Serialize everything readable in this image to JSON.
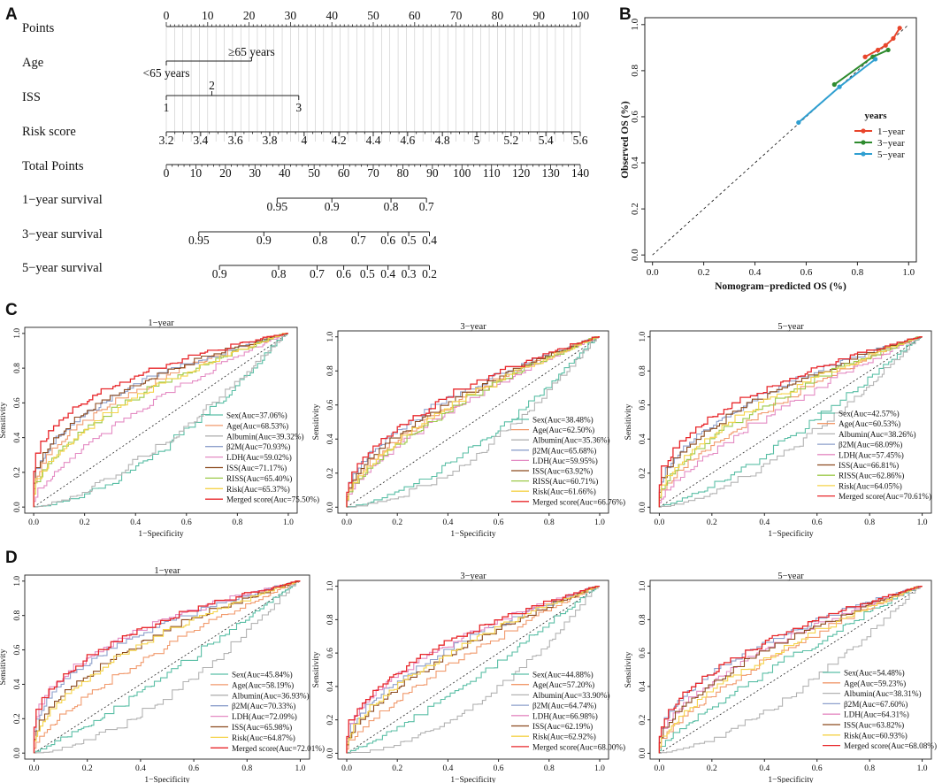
{
  "colors": {
    "Sex": "#5bbfa6",
    "Age": "#f19a6d",
    "Albumin": "#b3b3b3",
    "B2M": "#8ea0cc",
    "LDH": "#e48bc3",
    "ISS": "#8c4a1f",
    "RISS": "#9dc94a",
    "Risk": "#f5d34a",
    "Merged": "#e8282c",
    "y1": "#e8452b",
    "y3": "#2e8b2e",
    "y5": "#2f9fd1"
  },
  "panel_letters": [
    "A",
    "B",
    "C",
    "D"
  ],
  "chart_data": [
    {
      "id": "A",
      "type": "nomogram",
      "rows": [
        {
          "label": "Points",
          "scale": {
            "min": 0,
            "max": 100,
            "ticks": [
              "0",
              "10",
              "20",
              "30",
              "40",
              "50",
              "60",
              "70",
              "80",
              "90",
              "100"
            ],
            "tick_values": [
              0,
              10,
              20,
              30,
              40,
              50,
              60,
              70,
              80,
              90,
              100
            ]
          }
        },
        {
          "label": "Age",
          "categories": [
            {
              "name": "<65 years",
              "points": 0
            },
            {
              "name": "≥65 years",
              "points": 20.6
            }
          ]
        },
        {
          "label": "ISS",
          "categories": [
            {
              "name": "1",
              "points": 0
            },
            {
              "name": "2",
              "points": 11
            },
            {
              "name": "3",
              "points": 32
            }
          ]
        },
        {
          "label": "Risk score",
          "scale": {
            "ticks": [
              "3.2",
              "3.4",
              "3.6",
              "3.8",
              "4",
              "4.2",
              "4.4",
              "4.6",
              "4.8",
              "5",
              "5.2",
              "5.4",
              "5.6"
            ],
            "tick_points": [
              0,
              8.3,
              16.7,
              25,
              33.3,
              41.7,
              50,
              58.3,
              66.7,
              75,
              83.3,
              91.7,
              100
            ]
          }
        },
        {
          "label": "Total Points",
          "scale": {
            "min": 0,
            "max": 140,
            "ticks": [
              "0",
              "10",
              "20",
              "30",
              "40",
              "50",
              "60",
              "70",
              "80",
              "90",
              "100",
              "110",
              "120",
              "130",
              "140"
            ]
          }
        },
        {
          "label": "1−year survival",
          "ticks": [
            "0.95",
            "0.9",
            "0.8",
            "0.7"
          ],
          "total_points": [
            37.5,
            56,
            76,
            88
          ]
        },
        {
          "label": "3−year survival",
          "ticks": [
            "0.95",
            "0.9",
            "0.8",
            "0.7",
            "0.6",
            "0.5",
            "0.4"
          ],
          "total_points": [
            11,
            33,
            52,
            65,
            75,
            82,
            89
          ]
        },
        {
          "label": "5−year survival",
          "ticks": [
            "0.9",
            "0.8",
            "0.7",
            "0.6",
            "0.5",
            "0.4",
            "0.3",
            "0.2"
          ],
          "total_points": [
            18,
            38,
            51,
            60,
            68,
            75,
            82,
            89
          ]
        }
      ]
    },
    {
      "id": "B",
      "type": "line",
      "xlabel": "Nomogram−predicted OS (%)",
      "ylabel": "Observed OS (%)",
      "xlim": [
        -0.03,
        1.03
      ],
      "ylim": [
        -0.03,
        1.03
      ],
      "ticks": [
        "0.0",
        "0.2",
        "0.4",
        "0.6",
        "0.8",
        "1.0"
      ],
      "legend_title": "years",
      "legend_position": "right",
      "series": [
        {
          "name": "1−year",
          "color_key": "y1",
          "x": [
            0.83,
            0.88,
            0.91,
            0.94,
            0.965
          ],
          "y": [
            0.86,
            0.89,
            0.91,
            0.94,
            0.985
          ]
        },
        {
          "name": "3−year",
          "color_key": "y3",
          "x": [
            0.71,
            0.86,
            0.92
          ],
          "y": [
            0.74,
            0.86,
            0.89
          ]
        },
        {
          "name": "5−year",
          "color_key": "y5",
          "x": [
            0.57,
            0.73,
            0.87
          ],
          "y": [
            0.575,
            0.73,
            0.85
          ]
        }
      ]
    },
    {
      "id": "C1",
      "type": "roc",
      "title": "1−year",
      "xlabel": "1−Specificity",
      "ylabel": "Sensitivity",
      "ticks": [
        "0.0",
        "0.2",
        "0.4",
        "0.6",
        "0.8",
        "1.0"
      ],
      "legend": [
        {
          "key": "Sex",
          "label": "Sex(Auc=37.06%)",
          "auc": 37.06
        },
        {
          "key": "Age",
          "label": "Age(Auc=68.53%)",
          "auc": 68.53
        },
        {
          "key": "Albumin",
          "label": "Albumin(Auc=39.32%)",
          "auc": 39.32
        },
        {
          "key": "B2M",
          "label": "β2M(Auc=70.93%)",
          "auc": 70.93
        },
        {
          "key": "LDH",
          "label": "LDH(Auc=59.02%)",
          "auc": 59.02
        },
        {
          "key": "ISS",
          "label": "ISS(Auc=71.17%)",
          "auc": 71.17
        },
        {
          "key": "RISS",
          "label": "RISS(Auc=65.40%)",
          "auc": 65.4
        },
        {
          "key": "Risk",
          "label": "Risk(Auc=65.37%)",
          "auc": 65.37
        },
        {
          "key": "Merged",
          "label": "Merged score(Auc=75.50%)",
          "auc": 75.5
        }
      ]
    },
    {
      "id": "C3",
      "type": "roc",
      "title": "3−year",
      "xlabel": "1−Specificity",
      "ylabel": "Sensitivity",
      "ticks": [
        "0.0",
        "0.2",
        "0.4",
        "0.6",
        "0.8",
        "1.0"
      ],
      "legend": [
        {
          "key": "Sex",
          "label": "Sex(Auc=38.48%)",
          "auc": 38.48
        },
        {
          "key": "Age",
          "label": "Age(Auc=62.50%)",
          "auc": 62.5
        },
        {
          "key": "Albumin",
          "label": "Albumin(Auc=35.36%)",
          "auc": 35.36
        },
        {
          "key": "B2M",
          "label": "β2M(Auc=65.68%)",
          "auc": 65.68
        },
        {
          "key": "LDH",
          "label": "LDH(Auc=59.95%)",
          "auc": 59.95
        },
        {
          "key": "ISS",
          "label": "ISS(Auc=63.92%)",
          "auc": 63.92
        },
        {
          "key": "RISS",
          "label": "RISS(Auc=60.71%)",
          "auc": 60.71
        },
        {
          "key": "Risk",
          "label": "Risk(Auc=61.66%)",
          "auc": 61.66
        },
        {
          "key": "Merged",
          "label": "Merged score(Auc=66.76%)",
          "auc": 66.76
        }
      ]
    },
    {
      "id": "C5",
      "type": "roc",
      "title": "5−year",
      "xlabel": "1−Specificity",
      "ylabel": "Sensitivity",
      "ticks": [
        "0.0",
        "0.2",
        "0.4",
        "0.6",
        "0.8",
        "1.0"
      ],
      "legend": [
        {
          "key": "Sex",
          "label": "Sex(Auc=42.57%)",
          "auc": 42.57
        },
        {
          "key": "Age",
          "label": "Age(Auc=60.53%)",
          "auc": 60.53
        },
        {
          "key": "Albumin",
          "label": "Albumin(Auc=38.26%)",
          "auc": 38.26
        },
        {
          "key": "B2M",
          "label": "β2M(Auc=68.09%)",
          "auc": 68.09
        },
        {
          "key": "LDH",
          "label": "LDH(Auc=57.45%)",
          "auc": 57.45
        },
        {
          "key": "ISS",
          "label": "ISS(Auc=66.81%)",
          "auc": 66.81
        },
        {
          "key": "RISS",
          "label": "RISS(Auc=62.86%)",
          "auc": 62.86
        },
        {
          "key": "Risk",
          "label": "Risk(Auc=64.05%)",
          "auc": 64.05
        },
        {
          "key": "Merged",
          "label": "Merged score(Auc=70.61%)",
          "auc": 70.61
        }
      ]
    },
    {
      "id": "D1",
      "type": "roc",
      "title": "1−year",
      "xlabel": "1−Specificity",
      "ylabel": "Sensitivity",
      "ticks": [
        "0.0",
        "0.2",
        "0.4",
        "0.6",
        "0.8",
        "1.0"
      ],
      "legend": [
        {
          "key": "Sex",
          "label": "Sex(Auc=45.84%)",
          "auc": 45.84
        },
        {
          "key": "Age",
          "label": "Age(Auc=58.19%)",
          "auc": 58.19
        },
        {
          "key": "Albumin",
          "label": "Albumin(Auc=36.93%)",
          "auc": 36.93
        },
        {
          "key": "B2M",
          "label": "β2M(Auc=70.33%)",
          "auc": 70.33
        },
        {
          "key": "LDH",
          "label": "LDH(Auc=72.09%)",
          "auc": 72.09
        },
        {
          "key": "ISS",
          "label": "ISS(Auc=65.98%)",
          "auc": 65.98
        },
        {
          "key": "Risk",
          "label": "Risk(Auc=64.87%)",
          "auc": 64.87
        },
        {
          "key": "Merged",
          "label": "Merged score(Auc=72.01%)",
          "auc": 72.01
        }
      ]
    },
    {
      "id": "D3",
      "type": "roc",
      "title": "3−year",
      "xlabel": "1−Specificity",
      "ylabel": "Sensitivity",
      "ticks": [
        "0.0",
        "0.2",
        "0.4",
        "0.6",
        "0.8",
        "1.0"
      ],
      "legend": [
        {
          "key": "Sex",
          "label": "Sex(Auc=44.88%)",
          "auc": 44.88
        },
        {
          "key": "Age",
          "label": "Age(Auc=57.20%)",
          "auc": 57.2
        },
        {
          "key": "Albumin",
          "label": "Albumin(Auc=33.90%)",
          "auc": 33.9
        },
        {
          "key": "B2M",
          "label": "β2M(Auc=64.74%)",
          "auc": 64.74
        },
        {
          "key": "LDH",
          "label": "LDH(Auc=66.98%)",
          "auc": 66.98
        },
        {
          "key": "ISS",
          "label": "ISS(Auc=62.19%)",
          "auc": 62.19
        },
        {
          "key": "Risk",
          "label": "Risk(Auc=62.92%)",
          "auc": 62.92
        },
        {
          "key": "Merged",
          "label": "Merged score(Auc=68.00%)",
          "auc": 68.0
        }
      ]
    },
    {
      "id": "D5",
      "type": "roc",
      "title": "5−year",
      "xlabel": "1−Specificity",
      "ylabel": "Sensitivity",
      "ticks": [
        "0.0",
        "0.2",
        "0.4",
        "0.6",
        "0.8",
        "1.0"
      ],
      "legend": [
        {
          "key": "Sex",
          "label": "Sex(Auc=54.48%)",
          "auc": 54.48
        },
        {
          "key": "Age",
          "label": "Age(Auc=59.23%)",
          "auc": 59.23
        },
        {
          "key": "Albumin",
          "label": "Albumin(Auc=38.31%)",
          "auc": 38.31
        },
        {
          "key": "B2M",
          "label": "β2M(Auc=67.60%)",
          "auc": 67.6
        },
        {
          "key": "LDH",
          "label": "LDH(Auc=64.31%)",
          "auc": 64.31
        },
        {
          "key": "ISS",
          "label": "ISS(Auc=63.82%)",
          "auc": 63.82
        },
        {
          "key": "Risk",
          "label": "Risk(Auc=60.93%)",
          "auc": 60.93
        },
        {
          "key": "Merged",
          "label": "Merged score(Auc=68.08%)",
          "auc": 68.08
        }
      ]
    }
  ]
}
